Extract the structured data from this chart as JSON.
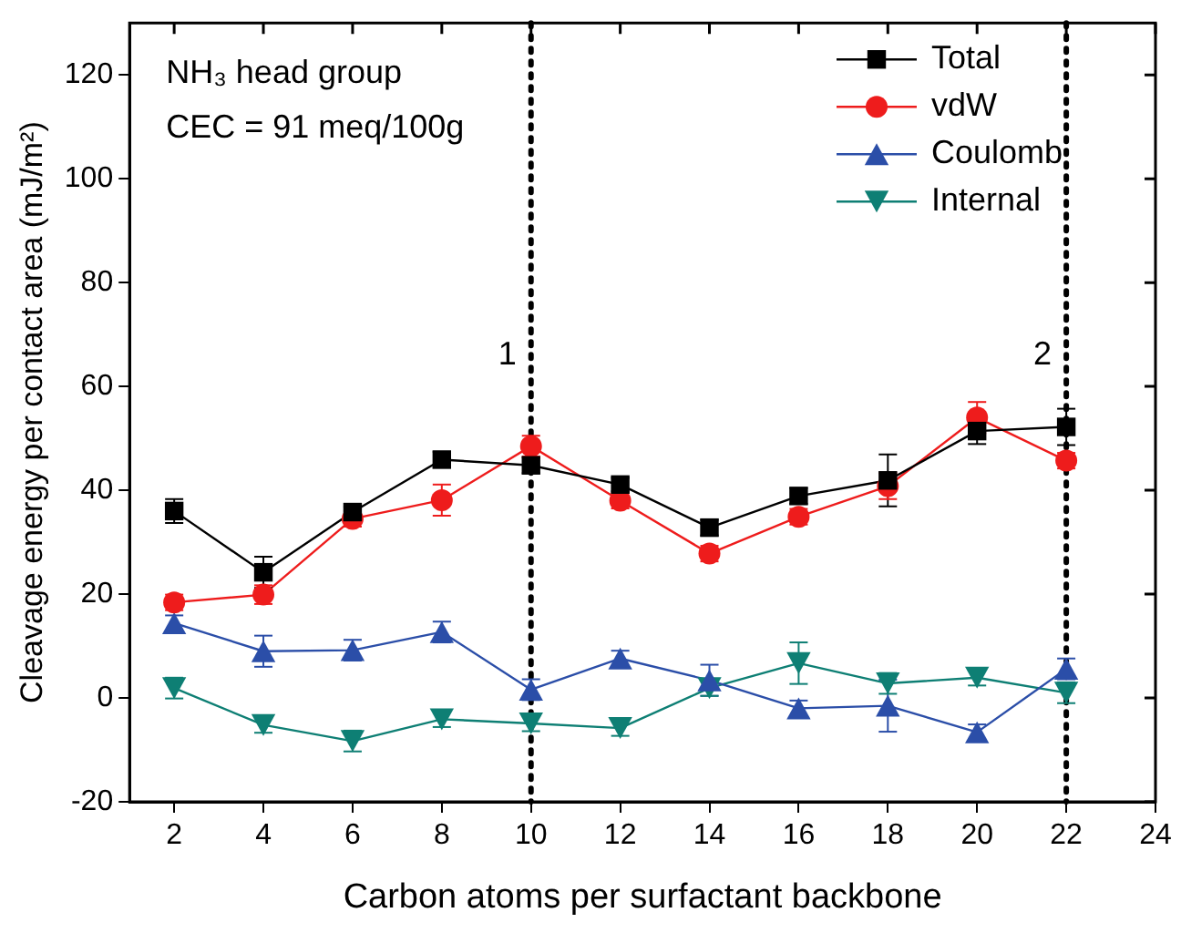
{
  "chart_data": {
    "type": "line",
    "xlabel": "Carbon atoms per surfactant backbone",
    "ylabel": "Cleavage energy per contact area (mJ/m²)",
    "x": [
      2,
      4,
      6,
      8,
      10,
      12,
      14,
      16,
      18,
      20,
      22
    ],
    "xlim": [
      1,
      24
    ],
    "xticks": [
      2,
      4,
      6,
      8,
      10,
      12,
      14,
      16,
      18,
      20,
      22,
      24
    ],
    "ylim": [
      -20,
      130
    ],
    "yticks": [
      -20,
      0,
      20,
      40,
      60,
      80,
      100,
      120
    ],
    "grid": false,
    "legend": "top right",
    "line_style": "solid",
    "series": [
      {
        "name": "Total",
        "color": "#000000",
        "marker": "square",
        "values": [
          36.0,
          24.2,
          35.8,
          45.9,
          44.8,
          41.1,
          32.8,
          38.9,
          41.9,
          51.4,
          52.2
        ],
        "errors": [
          2.3,
          3,
          1,
          1.5,
          1.5,
          1.3,
          1.5,
          1.5,
          5,
          2.5,
          3.5
        ]
      },
      {
        "name": "vdW",
        "color": "#ee1c1c",
        "marker": "circle",
        "values": [
          18.4,
          19.9,
          34.5,
          38.1,
          48.5,
          38.0,
          27.8,
          34.9,
          40.8,
          54.0,
          45.7
        ],
        "errors": [
          1.5,
          1.8,
          1.5,
          3,
          2,
          1.5,
          1.5,
          1.5,
          2.5,
          3,
          1.5
        ]
      },
      {
        "name": "Coulomb",
        "color": "#2b4ea8",
        "marker": "triangle",
        "values": [
          14.4,
          9.0,
          9.2,
          12.7,
          1.6,
          7.6,
          3.4,
          -2.0,
          -1.5,
          -6.6,
          5.6
        ],
        "errors": [
          1.5,
          3,
          2,
          2,
          2,
          1.5,
          3,
          1.5,
          5,
          1.5,
          2
        ]
      },
      {
        "name": "Internal",
        "color": "#0e7f74",
        "marker": "triangle-down",
        "values": [
          1.9,
          -5.2,
          -8.3,
          -4.1,
          -4.9,
          -5.8,
          1.9,
          6.7,
          2.8,
          3.9,
          1.0
        ],
        "errors": [
          2,
          1.5,
          2,
          1.5,
          1.5,
          1.5,
          1.5,
          4,
          2,
          1.5,
          2
        ]
      }
    ],
    "ref_lines": [
      {
        "axis": "x",
        "value": 10,
        "line_style": "dotted",
        "color": "#000000"
      },
      {
        "axis": "x",
        "value": 22,
        "line_style": "dotted",
        "color": "#000000"
      }
    ],
    "annotations": [
      "NH₃ head group",
      "CEC = 91 meq/100g",
      {
        "text": "1",
        "x": 10,
        "y": 66
      },
      {
        "text": "2",
        "x": 22,
        "y": 66
      }
    ]
  }
}
